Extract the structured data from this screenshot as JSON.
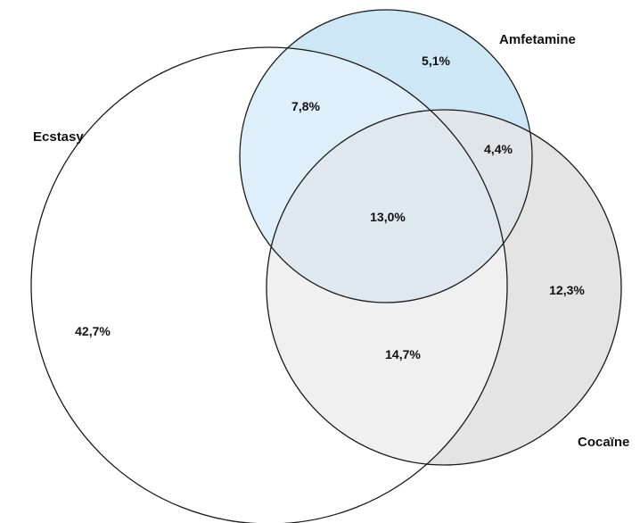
{
  "colors": {
    "outline": "#1a1a1a",
    "amfetamine_fill": "#cde7f7",
    "cocaine_fill": "#e4e4e4",
    "background": "#ffffff"
  },
  "sets": {
    "ecstasy": "Ecstasy",
    "amfetamine": "Amfetamine",
    "cocaine": "Cocaïne"
  },
  "regions": {
    "ecstasy_only": "42,7%",
    "amfetamine_only": "5,1%",
    "cocaine_only": "12,3%",
    "ecstasy_amfetamine": "7,8%",
    "amfetamine_cocaine": "4,4%",
    "ecstasy_cocaine": "14,7%",
    "all_three": "13,0%"
  }
}
